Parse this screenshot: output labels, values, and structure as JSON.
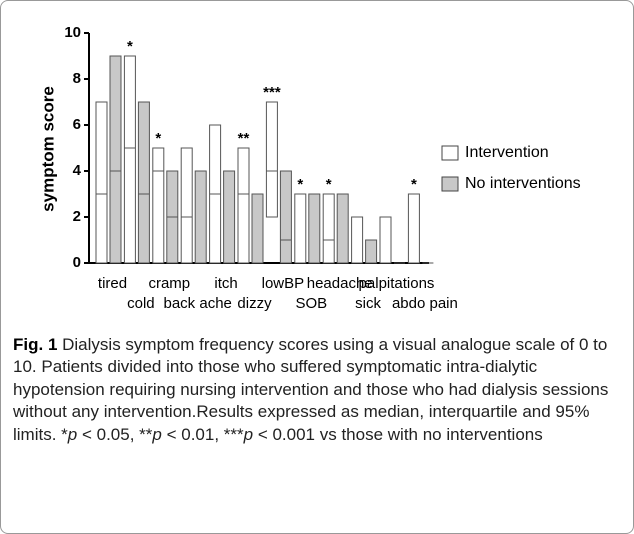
{
  "chart_data": {
    "type": "box",
    "y_label": "symptom score",
    "categories": [
      "tired",
      "cold",
      "cramp",
      "back ache",
      "itch",
      "dizzy",
      "lowBP",
      "SOB",
      "headache",
      "sick",
      "palpitations",
      "abdo pain"
    ],
    "ylim": [
      0,
      10
    ],
    "yticks": [
      0,
      2,
      4,
      6,
      8,
      10
    ],
    "series": [
      {
        "name": "Intervention",
        "color": "#ffffff",
        "min": [
          0,
          0,
          0,
          0,
          0,
          0,
          2,
          0,
          0,
          0,
          0,
          0
        ],
        "median": [
          3,
          5,
          4,
          2,
          3,
          3,
          4,
          0,
          1,
          0,
          0,
          0
        ],
        "max": [
          7,
          9,
          5,
          5,
          6,
          5,
          7,
          3,
          3,
          2,
          2,
          3
        ],
        "significance": [
          null,
          "*",
          "*",
          null,
          null,
          "**",
          "***",
          "*",
          "*",
          null,
          null,
          "*"
        ]
      },
      {
        "name": "No interventions",
        "color": "#c8c8c8",
        "min": [
          0,
          0,
          0,
          0,
          0,
          0,
          0,
          0,
          0,
          0,
          0,
          0
        ],
        "median": [
          4,
          3,
          2,
          0,
          0,
          0,
          1,
          0,
          0,
          0,
          0,
          0
        ],
        "max": [
          9,
          7,
          4,
          4,
          4,
          3,
          4,
          3,
          3,
          1,
          0,
          0
        ]
      }
    ]
  },
  "caption": {
    "label": "Fig. 1",
    "parts": [
      " Dialysis symptom frequency scores using a visual analogue scale of 0 to 10. Patients divided into those who suffered symptomatic intra-dialytic hypotension requiring nursing intervention and those who had dialysis sessions without any intervention.Results expressed as median, interquartile and 95% limits. *",
      "p",
      " < 0.05, **",
      "p",
      " < 0.01, ***",
      "p",
      " < 0.001 vs those with no interventions"
    ]
  }
}
